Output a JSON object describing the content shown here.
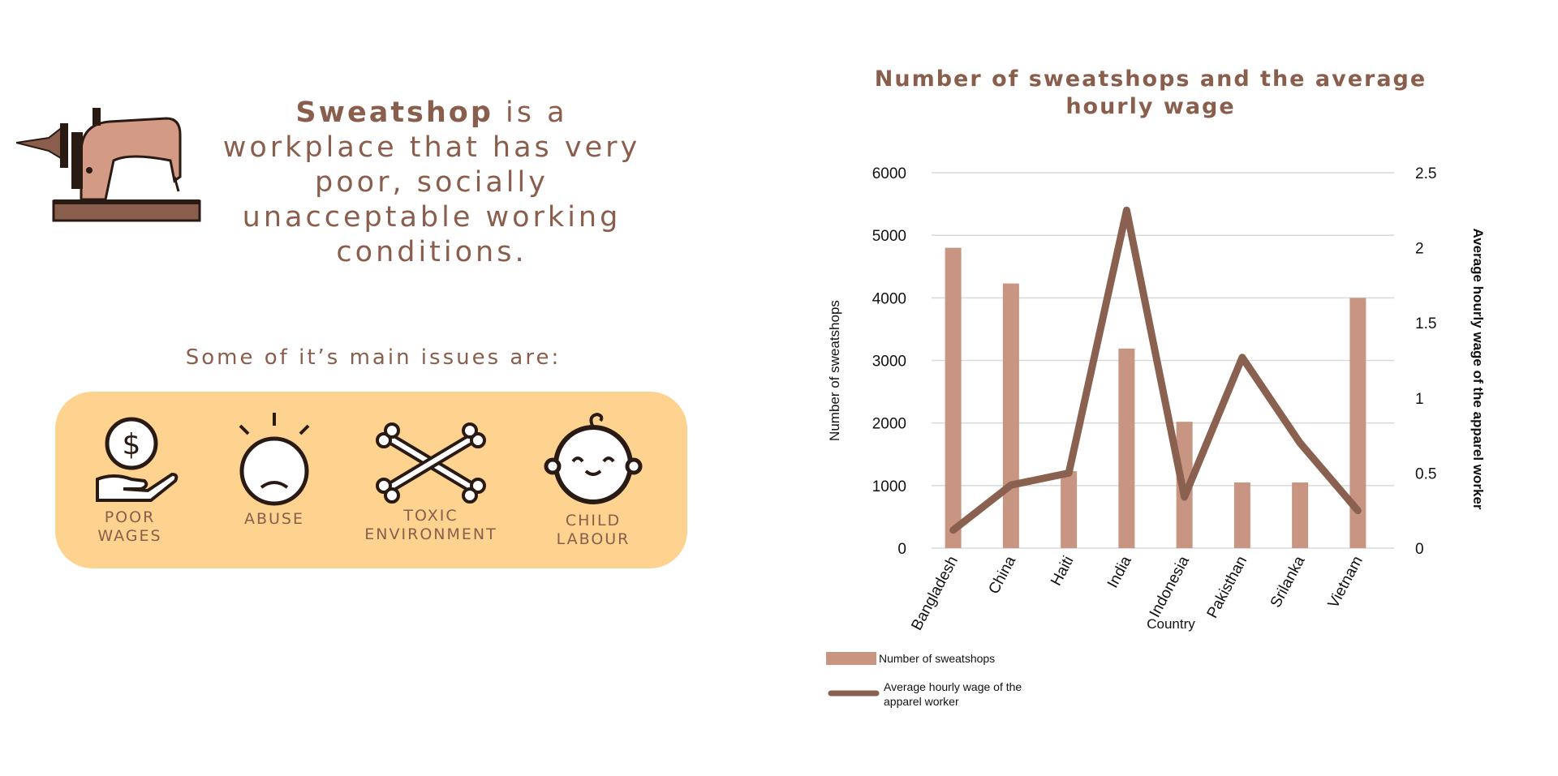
{
  "intro": {
    "keyword": "Sweatshop",
    "text": " is a workplace that has very poor, socially unacceptable working conditions."
  },
  "issues": {
    "heading": "Some of it’s main issues are:",
    "items": [
      {
        "line1": "POOR",
        "line2": "WAGES",
        "icon": "money-hand-icon"
      },
      {
        "line1": "ABUSE",
        "line2": "",
        "icon": "sad-face-icon"
      },
      {
        "line1": "TOXIC",
        "line2": "ENVIRONMENT",
        "icon": "crossbones-icon"
      },
      {
        "line1": "CHILD",
        "line2": "LABOUR",
        "icon": "baby-face-icon"
      }
    ]
  },
  "colors": {
    "accent": "#8a5e4c",
    "bar": "#c99583",
    "line": "#8a6150",
    "panel": "#fdd38f"
  },
  "chart_data": {
    "type": "bar",
    "title_line1": "Number of sweatshops and the average",
    "title_line2": "hourly wage",
    "categories": [
      "Bangladesh",
      "China",
      "Haiti",
      "India",
      "Indonesia",
      "Pakisthan",
      "Srilanka",
      "Vietnam"
    ],
    "series": [
      {
        "name": "Number of sweatshops",
        "type": "bar",
        "axis": "left",
        "values": [
          4800,
          4230,
          1230,
          3190,
          2020,
          1050,
          1050,
          4000
        ]
      },
      {
        "name_line1": "Average hourly wage of the",
        "name_line2": "apparel worker",
        "type": "line",
        "axis": "right",
        "values": [
          0.12,
          0.42,
          0.5,
          2.25,
          0.34,
          1.27,
          0.7,
          0.25
        ]
      }
    ],
    "xlabel": "Country",
    "ylabel": "Number of sweatshops",
    "y2label": "Average hourly wage of the apparel worker",
    "ylim": [
      0,
      6000
    ],
    "y2lim": [
      0,
      2.5
    ],
    "yticks": [
      "0",
      "1000",
      "2000",
      "3000",
      "4000",
      "5000",
      "6000"
    ],
    "y2ticks": [
      "0",
      "0.5",
      "1",
      "1.5",
      "2",
      "2.5"
    ],
    "grid": true,
    "legend": "bottom-left"
  }
}
